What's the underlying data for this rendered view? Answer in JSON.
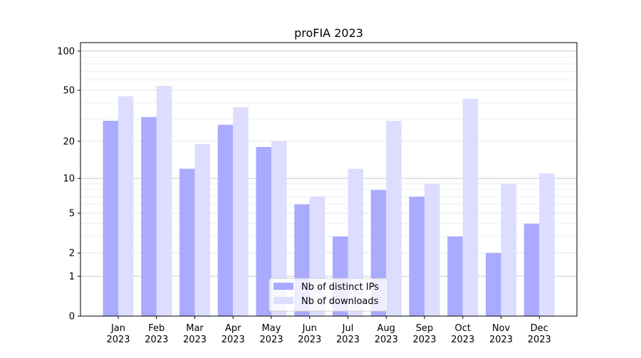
{
  "chart_data": {
    "type": "bar",
    "title": "proFIA 2023",
    "xlabel": "",
    "ylabel": "",
    "yscale": "log10(1+y)",
    "ylim": [
      0,
      116
    ],
    "yticks": [
      0,
      1,
      2,
      5,
      10,
      20,
      50,
      100
    ],
    "ytick_labels": [
      "0",
      "1",
      "2",
      "5",
      "10",
      "20",
      "50",
      "100"
    ],
    "categories": [
      "Jan\n2023",
      "Feb\n2023",
      "Mar\n2023",
      "Apr\n2023",
      "May\n2023",
      "Jun\n2023",
      "Jul\n2023",
      "Aug\n2023",
      "Sep\n2023",
      "Oct\n2023",
      "Nov\n2023",
      "Dec\n2023"
    ],
    "category_month": [
      "Jan",
      "Feb",
      "Mar",
      "Apr",
      "May",
      "Jun",
      "Jul",
      "Aug",
      "Sep",
      "Oct",
      "Nov",
      "Dec"
    ],
    "category_year": "2023",
    "series": [
      {
        "name": "Nb of distinct IPs",
        "color": "#aaaaff",
        "values": [
          29,
          31,
          12,
          27,
          18,
          6,
          3,
          8,
          7,
          3,
          2,
          4
        ]
      },
      {
        "name": "Nb of downloads",
        "color": "#ddddff",
        "values": [
          45,
          54,
          19,
          37,
          20,
          7,
          12,
          29,
          9,
          43,
          9,
          11
        ]
      }
    ],
    "grid": true,
    "legend_position": "lower-center"
  }
}
